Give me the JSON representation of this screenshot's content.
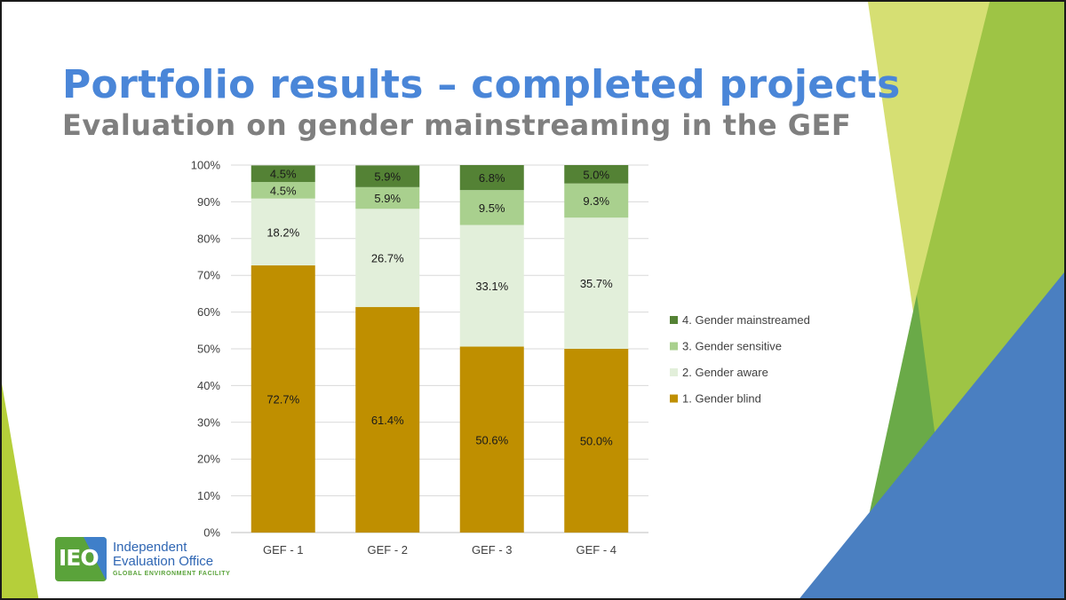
{
  "slide": {
    "title": "Portfolio results – completed projects",
    "subtitle": "Evaluation on gender mainstreaming in the GEF"
  },
  "logo": {
    "mark": "IEO",
    "line1": "Independent",
    "line2": "Evaluation Office",
    "line3": "GLOBAL ENVIRONMENT FACILITY"
  },
  "colors": {
    "title": "#4a86d8",
    "subtitle": "#7f7f7f",
    "deco_light_green": "#d6df73",
    "deco_green": "#9cc43f",
    "deco_blue": "#4a7fc1"
  },
  "chart_data": {
    "type": "bar",
    "stacked": true,
    "categories": [
      "GEF - 1",
      "GEF - 2",
      "GEF - 3",
      "GEF - 4"
    ],
    "series": [
      {
        "name": "1. Gender blind",
        "color": "#bf8f00",
        "values": [
          72.7,
          61.4,
          50.6,
          50.0
        ],
        "labels": [
          "72.7%",
          "61.4%",
          "50.6%",
          "50.0%"
        ]
      },
      {
        "name": "2. Gender aware",
        "color": "#e2efda",
        "values": [
          18.2,
          26.7,
          33.1,
          35.7
        ],
        "labels": [
          "18.2%",
          "26.7%",
          "33.1%",
          "35.7%"
        ]
      },
      {
        "name": "3. Gender sensitive",
        "color": "#a9d08e",
        "values": [
          4.5,
          5.9,
          9.5,
          9.3
        ],
        "labels": [
          "4.5%",
          "5.9%",
          "9.5%",
          "9.3%"
        ]
      },
      {
        "name": "4. Gender mainstreamed",
        "color": "#548235",
        "values": [
          4.5,
          5.9,
          6.8,
          5.0
        ],
        "labels": [
          "4.5%",
          "5.9%",
          "6.8%",
          "5.0%"
        ]
      }
    ],
    "yticks": [
      "0%",
      "10%",
      "20%",
      "30%",
      "40%",
      "50%",
      "60%",
      "70%",
      "80%",
      "90%",
      "100%"
    ],
    "ylim": [
      0,
      100
    ],
    "grid": true,
    "legend_position": "right",
    "title": "",
    "xlabel": "",
    "ylabel": ""
  }
}
